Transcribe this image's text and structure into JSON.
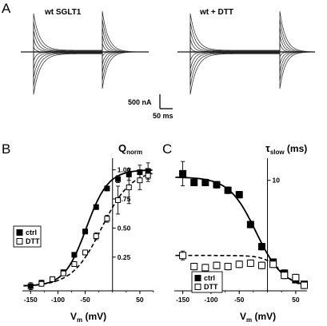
{
  "panels": {
    "a_label": "A",
    "b_label": "B",
    "c_label": "C"
  },
  "traces": {
    "left_title": "wt SGLT1",
    "right_title": "wt + DTT",
    "scale_current": "500 nA",
    "scale_time": "50 ms"
  },
  "chart_data": [
    {
      "type": "scatter",
      "panel": "B",
      "title": "",
      "ylabel_main": "Q",
      "ylabel_sub": "norm",
      "xlabel_main": "V",
      "xlabel_sub": "m",
      "xlabel_rest": " (mV)",
      "xlim": [
        -165,
        75
      ],
      "ylim": [
        -0.04,
        1.1
      ],
      "xticks": [
        -150,
        -100,
        -50,
        50
      ],
      "yticks": [
        0.25,
        0.5,
        0.75,
        1.0
      ],
      "ytick_labels": [
        "0.25",
        "0.50",
        "0.75",
        "1.00"
      ],
      "legend_position": "left",
      "series": [
        {
          "name": "ctrl",
          "marker": "filled-square",
          "x": [
            -150,
            -130,
            -110,
            -90,
            -70,
            -50,
            -30,
            -10,
            10,
            30,
            50,
            65
          ],
          "y": [
            0.0,
            0.03,
            0.06,
            0.12,
            0.27,
            0.47,
            0.68,
            0.84,
            0.92,
            0.96,
            0.98,
            0.99
          ],
          "err": [
            0.03,
            0.02,
            0.02,
            0.02,
            0.02,
            0.02,
            0.02,
            0.02,
            0.03,
            0.05,
            0.06,
            0.07
          ]
        },
        {
          "name": "DTT",
          "marker": "open-square",
          "x": [
            -130,
            -110,
            -90,
            -70,
            -50,
            -30,
            -10,
            10,
            30,
            50,
            65
          ],
          "y": [
            0.02,
            0.06,
            0.11,
            0.19,
            0.29,
            0.43,
            0.58,
            0.74,
            0.85,
            0.91,
            0.95
          ],
          "err": [
            0.01,
            0.02,
            0.02,
            0.02,
            0.02,
            0.03,
            0.03,
            0.12,
            0.14,
            0.08,
            0.05
          ]
        }
      ],
      "fits": [
        {
          "series": "ctrl",
          "style": "solid",
          "v_half": -48,
          "slope": 20
        },
        {
          "series": "DTT",
          "style": "dashed",
          "v_half": -20,
          "slope": 27
        }
      ]
    },
    {
      "type": "scatter",
      "panel": "C",
      "title": "",
      "ylabel_main": "τ",
      "ylabel_sub": "slow",
      "ylabel_rest": " (ms)",
      "xlabel_main": "V",
      "xlabel_sub": "m",
      "xlabel_rest": " (mV)",
      "xlim": [
        -165,
        70
      ],
      "ylim": [
        0,
        12
      ],
      "xticks": [
        -150,
        -100,
        -50,
        50
      ],
      "yticks": [
        10
      ],
      "ytick_labels": [
        "10"
      ],
      "legend_position": "bottom-left",
      "series": [
        {
          "name": "ctrl",
          "marker": "filled-square",
          "x": [
            -150,
            -130,
            -110,
            -90,
            -70,
            -50,
            -30,
            -10,
            10,
            30,
            50,
            65
          ],
          "y": [
            10.6,
            9.8,
            9.8,
            9.6,
            9.1,
            8.7,
            6.0,
            4.0,
            2.6,
            1.6,
            1.0,
            0.6
          ],
          "err": [
            1.1,
            0.3,
            0.3,
            0.3,
            0.3,
            0.3,
            0.3,
            0.3,
            0.3,
            0.3,
            0.2,
            0.2
          ]
        },
        {
          "name": "DTT",
          "marker": "open-square",
          "x": [
            -150,
            -130,
            -110,
            -90,
            -70,
            -50,
            -30,
            -10,
            10,
            30,
            50,
            65
          ],
          "y": [
            3.2,
            2.2,
            2.1,
            2.3,
            2.2,
            2.4,
            2.5,
            2.3,
            2.4,
            1.4,
            1.2,
            0.5
          ],
          "err": [
            0.4,
            0.3,
            0.3,
            0.3,
            0.3,
            0.3,
            0.3,
            0.3,
            0.3,
            0.3,
            0.3,
            0.3
          ]
        }
      ],
      "fits": [
        {
          "series": "ctrl",
          "style": "solid",
          "base": 0.3,
          "amp": 10.0,
          "v_half": -20,
          "slope": 24
        },
        {
          "series": "DTT",
          "style": "dashed",
          "base": 0.3,
          "amp": 2.9,
          "v_half": 25,
          "slope": 15
        }
      ]
    }
  ]
}
